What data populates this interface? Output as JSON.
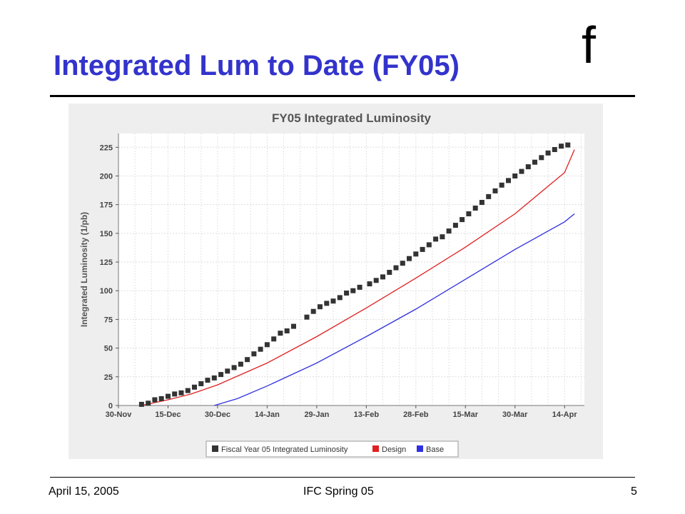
{
  "slide": {
    "title": "Integrated Lum to Date (FY05)",
    "logo": "f",
    "footer_left": "April 15, 2005",
    "footer_center": "IFC Spring 05",
    "footer_right": "5"
  },
  "colors": {
    "title": "#3333cc",
    "observed": "#333333",
    "design": "#e02020",
    "base": "#3030e0",
    "chart_bg": "#eeeeee",
    "plot_bg": "#ffffff"
  },
  "chart_data": {
    "type": "line",
    "title": "FY05 Integrated Luminosity",
    "xlabel": "",
    "ylabel": "Integrated Luminosity (1/pb)",
    "x_ticks": [
      "30-Nov",
      "15-Dec",
      "30-Dec",
      "14-Jan",
      "29-Jan",
      "13-Feb",
      "28-Feb",
      "15-Mar",
      "30-Mar",
      "14-Apr"
    ],
    "y_ticks": [
      0,
      25,
      50,
      75,
      100,
      125,
      150,
      175,
      200,
      225
    ],
    "xlim": [
      "2004-11-30",
      "2005-04-20"
    ],
    "ylim": [
      0,
      237
    ],
    "grid": true,
    "legend_position": "bottom",
    "series": [
      {
        "name": "Fiscal Year 05 Integrated Luminosity",
        "style": "markers",
        "x": [
          "2004-12-07",
          "2004-12-09",
          "2004-12-11",
          "2004-12-13",
          "2004-12-15",
          "2004-12-17",
          "2004-12-19",
          "2004-12-21",
          "2004-12-23",
          "2004-12-25",
          "2004-12-27",
          "2004-12-29",
          "2004-12-31",
          "2005-01-02",
          "2005-01-04",
          "2005-01-06",
          "2005-01-08",
          "2005-01-10",
          "2005-01-12",
          "2005-01-14",
          "2005-01-16",
          "2005-01-18",
          "2005-01-20",
          "2005-01-22",
          "2005-01-26",
          "2005-01-28",
          "2005-01-30",
          "2005-02-01",
          "2005-02-03",
          "2005-02-05",
          "2005-02-07",
          "2005-02-09",
          "2005-02-11",
          "2005-02-14",
          "2005-02-16",
          "2005-02-18",
          "2005-02-20",
          "2005-02-22",
          "2005-02-24",
          "2005-02-26",
          "2005-02-28",
          "2005-03-02",
          "2005-03-04",
          "2005-03-06",
          "2005-03-08",
          "2005-03-10",
          "2005-03-12",
          "2005-03-14",
          "2005-03-16",
          "2005-03-18",
          "2005-03-20",
          "2005-03-22",
          "2005-03-24",
          "2005-03-26",
          "2005-03-28",
          "2005-03-30",
          "2005-04-01",
          "2005-04-03",
          "2005-04-05",
          "2005-04-07",
          "2005-04-09",
          "2005-04-11",
          "2005-04-13",
          "2005-04-15"
        ],
        "y": [
          1,
          2,
          5,
          6,
          8,
          10,
          11,
          13,
          16,
          19,
          22,
          24,
          27,
          30,
          33,
          36,
          40,
          45,
          49,
          53,
          58,
          63,
          65,
          69,
          77,
          82,
          86,
          89,
          91,
          94,
          98,
          100,
          103,
          106,
          109,
          112,
          116,
          120,
          124,
          128,
          132,
          136,
          140,
          145,
          147,
          152,
          157,
          162,
          167,
          172,
          177,
          182,
          187,
          192,
          196,
          200,
          204,
          208,
          212,
          216,
          220,
          223,
          226,
          227
        ]
      },
      {
        "name": "Design",
        "style": "line",
        "x": [
          "2004-12-07",
          "2004-12-15",
          "2004-12-22",
          "2004-12-30",
          "2005-01-14",
          "2005-01-29",
          "2005-02-13",
          "2005-02-28",
          "2005-03-15",
          "2005-03-30",
          "2005-04-14",
          "2005-04-17"
        ],
        "y": [
          0,
          5,
          10,
          18,
          37,
          60,
          85,
          111,
          138,
          167,
          203,
          223
        ]
      },
      {
        "name": "Base",
        "style": "line",
        "x": [
          "2004-12-29",
          "2005-01-05",
          "2005-01-14",
          "2005-01-29",
          "2005-02-13",
          "2005-02-28",
          "2005-03-15",
          "2005-03-30",
          "2005-04-14",
          "2005-04-17"
        ],
        "y": [
          0,
          6,
          17,
          37,
          60,
          84,
          110,
          136,
          160,
          167
        ]
      }
    ]
  }
}
